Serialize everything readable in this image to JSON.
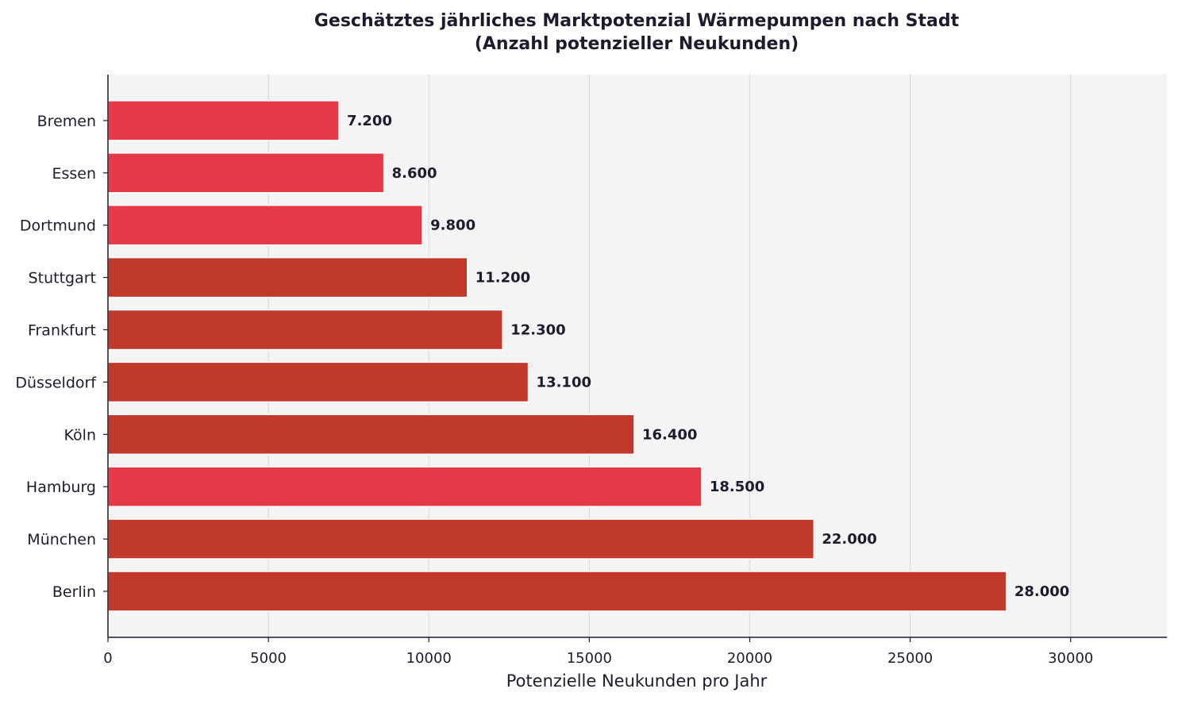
{
  "chart_data": {
    "type": "bar",
    "orientation": "horizontal",
    "title": "Geschätztes jährliches Marktpotenzial Wärmepumpen nach Stadt",
    "subtitle": "(Anzahl potenzieller Neukunden)",
    "xlabel": "Potenzielle Neukunden pro Jahr",
    "ylabel": "",
    "xlim": [
      0,
      33000
    ],
    "xticks": [
      0,
      5000,
      10000,
      15000,
      20000,
      25000,
      30000
    ],
    "grid": "vertical",
    "categories": [
      "Berlin",
      "München",
      "Hamburg",
      "Köln",
      "Düsseldorf",
      "Frankfurt",
      "Stuttgart",
      "Dortmund",
      "Essen",
      "Bremen"
    ],
    "values": [
      28000,
      22000,
      18500,
      16400,
      13100,
      12300,
      11200,
      9800,
      8600,
      7200
    ],
    "value_labels": [
      "28.000",
      "22.000",
      "18.500",
      "16.400",
      "13.100",
      "12.300",
      "11.200",
      "9.800",
      "8.600",
      "7.200"
    ],
    "bar_colors": [
      "#c0392b",
      "#c0392b",
      "#e63946",
      "#c0392b",
      "#c0392b",
      "#c0392b",
      "#c0392b",
      "#e63946",
      "#e63946",
      "#e63946"
    ],
    "colors": {
      "background": "#f4f4f4",
      "grid": "#dcdcdc",
      "axis": "#1c1c2e",
      "text": "#1c1c2e"
    }
  }
}
